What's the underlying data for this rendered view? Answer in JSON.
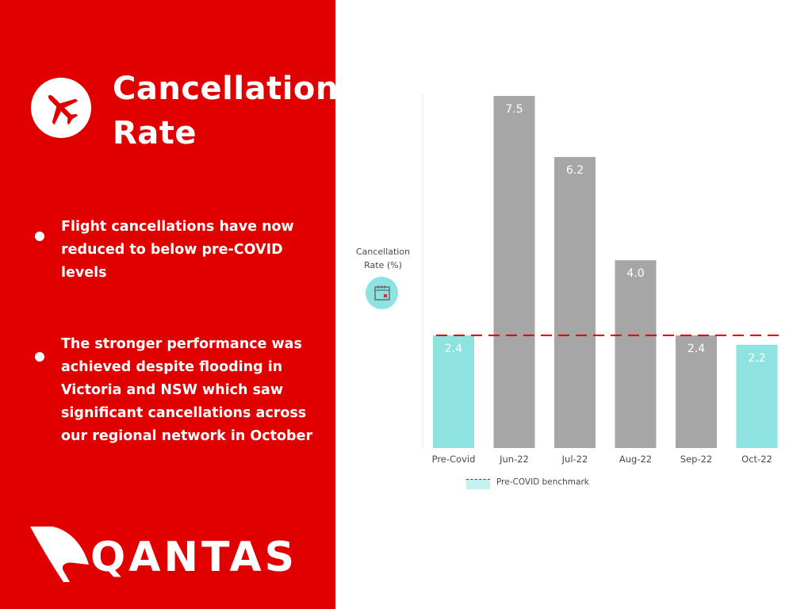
{
  "panel": {
    "title_line1": "Cancellation",
    "title_line2": "Rate",
    "bullets": [
      "Flight cancellations have now reduced to below pre-COVID levels",
      "The stronger performance was achieved despite flooding in Victoria and NSW which saw significant cancellations across our regional network in October"
    ],
    "logo_text": "QANTAS",
    "brand_color": "#e10000"
  },
  "icons": {
    "plane": "airplane-icon",
    "calendar": "calendar-cancel-icon"
  },
  "chart_data": {
    "type": "bar",
    "categories": [
      "Pre-Covid",
      "Jun-22",
      "Jul-22",
      "Aug-22",
      "Sep-22",
      "Oct-22"
    ],
    "values": [
      2.4,
      7.5,
      6.2,
      4.0,
      2.4,
      2.2
    ],
    "value_labels": [
      "2.4",
      "7.5",
      "6.2",
      "4.0",
      "2.4",
      "2.2"
    ],
    "bar_colors": [
      "#8ee2e0",
      "#a6a6a6",
      "#a6a6a6",
      "#a6a6a6",
      "#a6a6a6",
      "#8ee2e0"
    ],
    "ylabel_line1": "Cancellation",
    "ylabel_line2": "Rate (%)",
    "ylim": [
      0,
      7.5
    ],
    "benchmark": {
      "value": 2.4,
      "label": "Pre-COVID benchmark",
      "color": "#e10000"
    },
    "grid": false,
    "legend": "bottom"
  }
}
